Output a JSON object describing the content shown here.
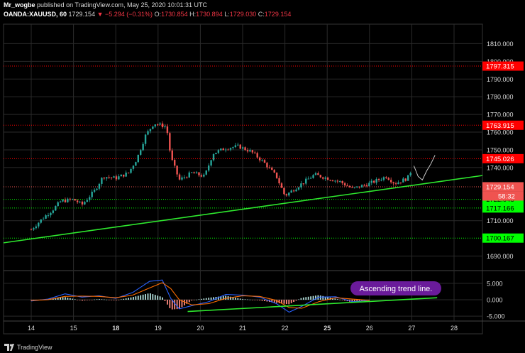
{
  "header": {
    "line1_user": "Mr_wogbe",
    "line1_rest": "published on TradingView.com, May 25, 2020 10:01:31 UTC",
    "symbol": "OANDA:XAUUSD, 60",
    "last": "1729.154",
    "change": "▼ −5.294 (−0.31%)",
    "o_label": "O:",
    "o": "1730.854",
    "h_label": "H:",
    "h": "1730.894",
    "l_label": "L:",
    "l": "1729.030",
    "c_label": "C:",
    "c": "1729.154"
  },
  "footer": {
    "brand": "TradingView",
    "logo_icon": "tradingview-logo-icon"
  },
  "colors": {
    "background": "#000000",
    "grid": "#2a2a2a",
    "up": "#26a69a",
    "down": "#ef5350",
    "trend": "#2ee82e",
    "level_red": "#ff0000",
    "level_green": "#00ff00",
    "macd": "#2962ff",
    "signal": "#ff6d00"
  },
  "chart_data": [
    {
      "type": "candlestick",
      "ylim": [
        1683,
        1821
      ],
      "y_ticks": [
        "1810.000",
        "1800.000",
        "1790.000",
        "1780.000",
        "1770.000",
        "1760.000",
        "1750.000",
        "1740.000",
        "1710.000",
        "1690.000"
      ],
      "x_ticks": [
        "14",
        "15",
        "18",
        "19",
        "20",
        "21",
        "22",
        "25",
        "26",
        "27",
        "28"
      ],
      "x_ticks_bold": [
        "18",
        "25"
      ],
      "price_levels": [
        {
          "label": "1797.315",
          "value": 1797.315,
          "color": "#ff0000"
        },
        {
          "label": "1763.915",
          "value": 1763.915,
          "color": "#ff0000"
        },
        {
          "label": "1745.026",
          "value": 1745.026,
          "color": "#ff0000"
        },
        {
          "label": "1722.048",
          "value": 1722.048,
          "color": "#00ff00"
        },
        {
          "label": "1717.166",
          "value": 1717.166,
          "color": "#00ff00"
        },
        {
          "label": "1700.167",
          "value": 1700.167,
          "color": "#00ff00"
        }
      ],
      "last_price": {
        "label": "1729.154",
        "value": 1729.154,
        "countdown": "58:32"
      },
      "trend_line": {
        "from": [
          0,
          1697.5
        ],
        "to": [
          11.05,
          1735.5
        ]
      },
      "price_path": [
        [
          0,
          1705
        ],
        [
          0.3,
          1712
        ],
        [
          0.5,
          1716
        ],
        [
          0.7,
          1721
        ],
        [
          1.0,
          1722
        ],
        [
          1.2,
          1719
        ],
        [
          1.5,
          1727
        ],
        [
          1.7,
          1735
        ],
        [
          2.0,
          1734
        ],
        [
          2.3,
          1737
        ],
        [
          2.5,
          1745
        ],
        [
          2.7,
          1758
        ],
        [
          2.9,
          1765
        ],
        [
          3.2,
          1763
        ],
        [
          3.3,
          1746
        ],
        [
          3.5,
          1733
        ],
        [
          3.8,
          1737
        ],
        [
          4.1,
          1735
        ],
        [
          4.3,
          1748
        ],
        [
          4.6,
          1751
        ],
        [
          4.9,
          1752
        ],
        [
          5.2,
          1749
        ],
        [
          5.5,
          1743
        ],
        [
          5.8,
          1735
        ],
        [
          6.0,
          1724
        ],
        [
          6.4,
          1731
        ],
        [
          6.7,
          1736
        ],
        [
          7.0,
          1734
        ],
        [
          7.3,
          1732
        ],
        [
          7.6,
          1728
        ],
        [
          8.0,
          1731
        ],
        [
          8.2,
          1733
        ],
        [
          8.4,
          1735
        ],
        [
          8.6,
          1731
        ],
        [
          8.9,
          1734
        ],
        [
          9.0,
          1739
        ]
      ],
      "wick_path": [
        [
          9.05,
          1741
        ],
        [
          9.15,
          1735
        ],
        [
          9.25,
          1733
        ],
        [
          9.35,
          1738
        ],
        [
          9.45,
          1742
        ],
        [
          9.55,
          1747
        ]
      ]
    },
    {
      "type": "macd",
      "ylim": [
        -6.5,
        8
      ],
      "y_ticks": [
        "5.000",
        "0.000",
        "-5.000"
      ],
      "y_values": [
        5,
        0,
        -5
      ],
      "macd": [
        [
          0,
          -0.4
        ],
        [
          0.4,
          0.2
        ],
        [
          0.8,
          1.8
        ],
        [
          1.2,
          0.8
        ],
        [
          1.6,
          1.2
        ],
        [
          2.0,
          0.4
        ],
        [
          2.4,
          2.2
        ],
        [
          2.8,
          5.6
        ],
        [
          3.1,
          6.0
        ],
        [
          3.3,
          0.4
        ],
        [
          3.5,
          -2.8
        ],
        [
          3.8,
          -1.8
        ],
        [
          4.2,
          -0.6
        ],
        [
          4.6,
          1.6
        ],
        [
          5.0,
          1.4
        ],
        [
          5.4,
          0.8
        ],
        [
          5.8,
          -1.2
        ],
        [
          6.1,
          -3.8
        ],
        [
          6.4,
          -2.0
        ],
        [
          6.8,
          0.8
        ],
        [
          7.2,
          0.9
        ],
        [
          7.6,
          -0.6
        ],
        [
          8.0,
          -0.2
        ]
      ],
      "signal": [
        [
          0,
          -0.2
        ],
        [
          0.4,
          0.0
        ],
        [
          0.8,
          1.0
        ],
        [
          1.2,
          1.1
        ],
        [
          1.6,
          1.0
        ],
        [
          2.0,
          0.6
        ],
        [
          2.4,
          1.4
        ],
        [
          2.8,
          3.6
        ],
        [
          3.1,
          5.2
        ],
        [
          3.3,
          3.4
        ],
        [
          3.5,
          0.0
        ],
        [
          3.8,
          -1.6
        ],
        [
          4.2,
          -1.2
        ],
        [
          4.6,
          0.4
        ],
        [
          5.0,
          1.2
        ],
        [
          5.4,
          1.0
        ],
        [
          5.8,
          -0.2
        ],
        [
          6.1,
          -2.4
        ],
        [
          6.4,
          -2.6
        ],
        [
          6.8,
          -0.6
        ],
        [
          7.2,
          0.6
        ],
        [
          7.6,
          0.2
        ],
        [
          8.0,
          -0.2
        ]
      ],
      "trend_line": {
        "from": [
          3.7,
          -3.6
        ],
        "to": [
          9.6,
          0.6
        ]
      },
      "annotation": "Ascending trend line."
    }
  ]
}
